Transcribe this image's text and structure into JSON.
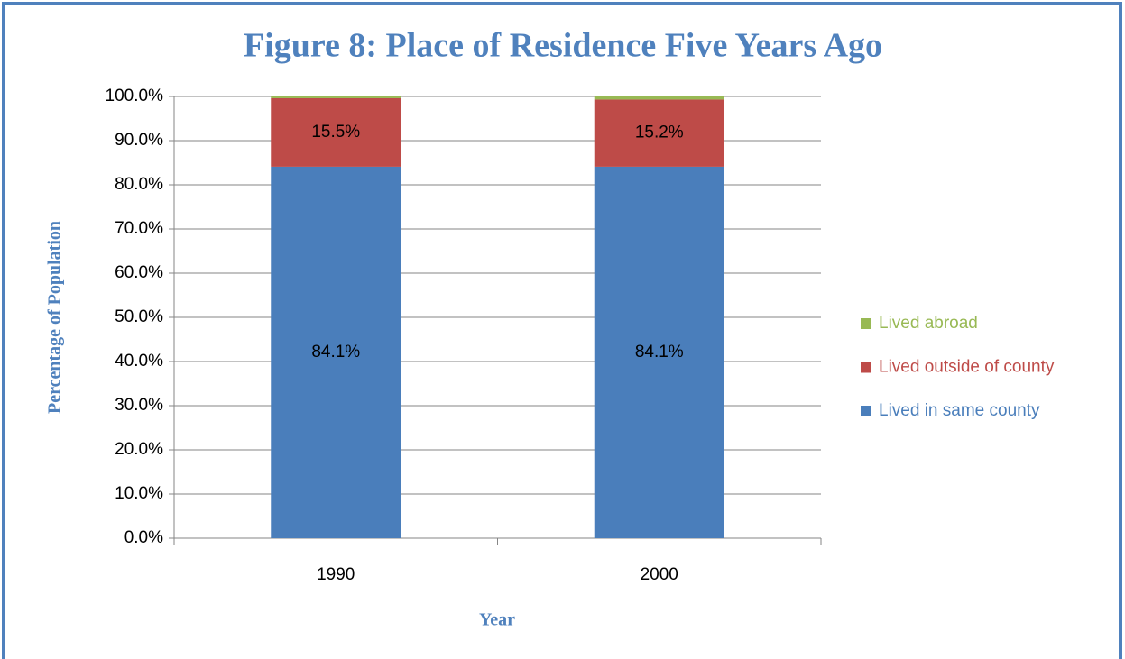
{
  "chart_data": {
    "type": "stacked_bar",
    "title": "Figure 8: Place of Residence Five Years Ago",
    "ylabel": "Percentage of Population",
    "xlabel": "Year",
    "categories": [
      "1990",
      "2000"
    ],
    "series": [
      {
        "name": "Lived in same county",
        "color": "#4a7ebb",
        "values": [
          84.1,
          84.1
        ],
        "value_labels": [
          "84.1%",
          "84.1%"
        ]
      },
      {
        "name": "Lived outside of county",
        "color": "#be4b48",
        "values": [
          15.5,
          15.2
        ],
        "value_labels": [
          "15.5%",
          "15.2%"
        ]
      },
      {
        "name": "Lived abroad",
        "color": "#98b954",
        "values": [
          0.4,
          0.7
        ]
      }
    ],
    "ylim": [
      0,
      100
    ],
    "yticks": [
      {
        "value": 0,
        "label": "0.0%"
      },
      {
        "value": 10,
        "label": "10.0%"
      },
      {
        "value": 20,
        "label": "20.0%"
      },
      {
        "value": 30,
        "label": "30.0%"
      },
      {
        "value": 40,
        "label": "40.0%"
      },
      {
        "value": 50,
        "label": "50.0%"
      },
      {
        "value": 60,
        "label": "60.0%"
      },
      {
        "value": 70,
        "label": "70.0%"
      },
      {
        "value": 80,
        "label": "80.0%"
      },
      {
        "value": 90,
        "label": "90.0%"
      },
      {
        "value": 100,
        "label": "100.0%"
      }
    ],
    "grid": true,
    "legend": "right"
  }
}
